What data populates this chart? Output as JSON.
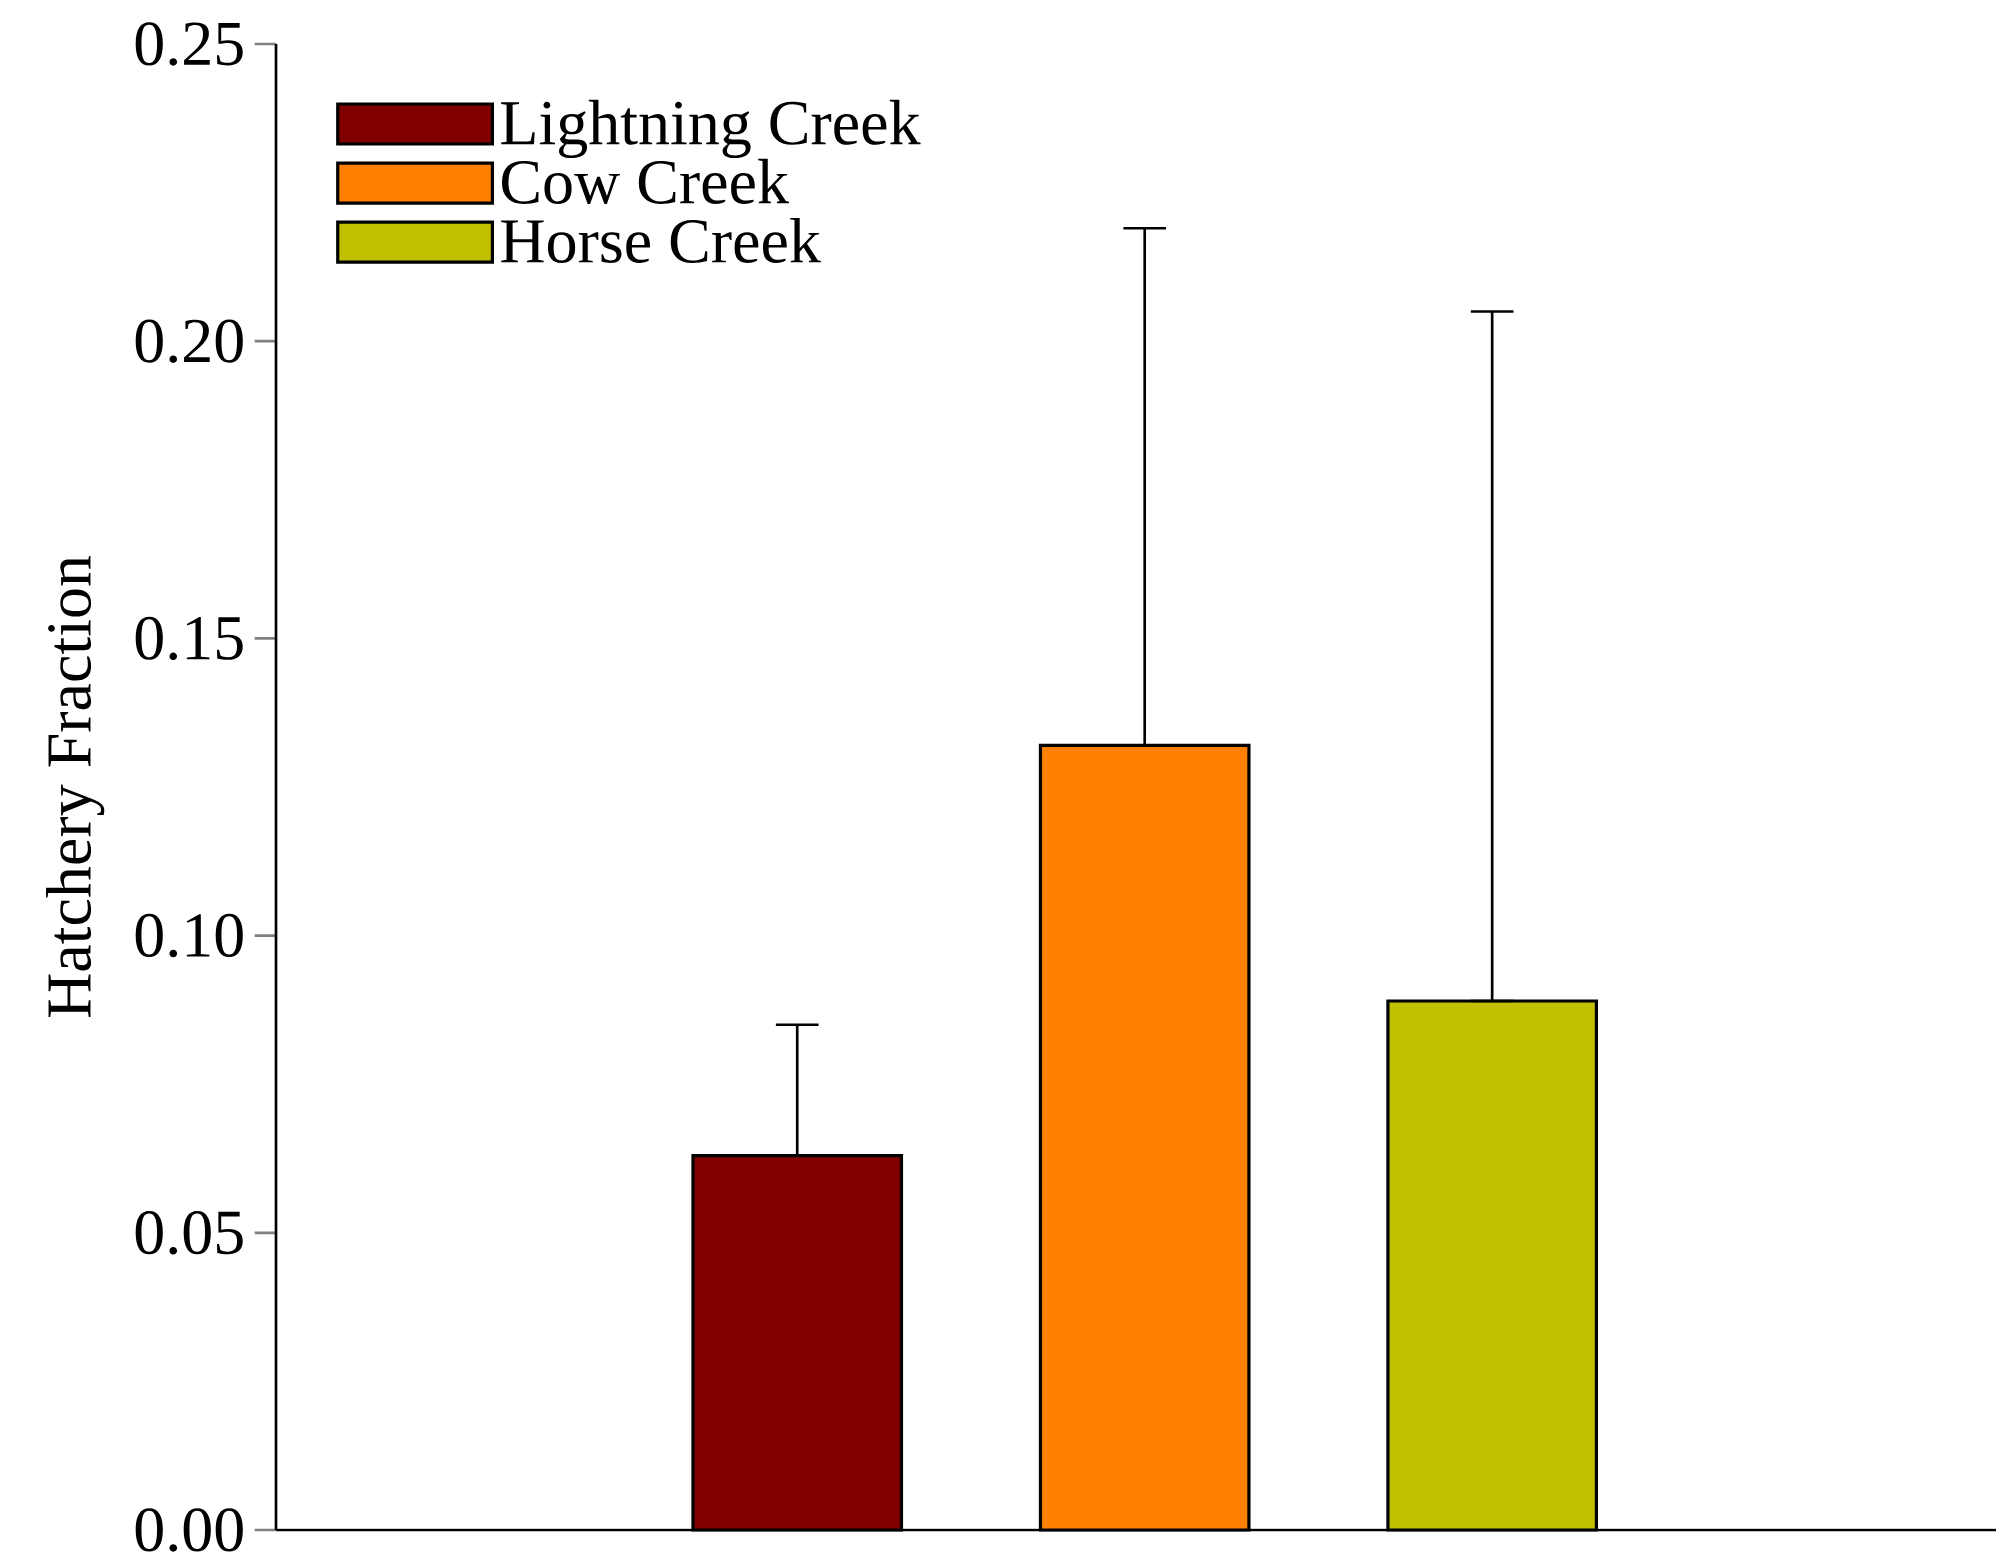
{
  "chart_data": {
    "type": "bar",
    "ylabel": "Hatchery Fraction",
    "categories": [
      null,
      null,
      null
    ],
    "series": [
      {
        "name": "Lightning Creek",
        "color": "#800000",
        "values": [
          0.063,
          null,
          null
        ],
        "errors": [
          [
            0.063,
            0.085
          ],
          null,
          null
        ]
      },
      {
        "name": "Cow Creek",
        "color": "#ff8000",
        "values": [
          null,
          0.132,
          null
        ],
        "errors": [
          null,
          [
            0.132,
            0.219
          ],
          null
        ]
      },
      {
        "name": "Horse Creek",
        "color": "#c0c000",
        "values": [
          null,
          null,
          0.089
        ],
        "errors": [
          null,
          null,
          [
            0.089,
            0.205
          ]
        ]
      }
    ],
    "ylim": [
      0,
      0.25
    ],
    "yticks": [
      {
        "value": 0,
        "label": "0.00"
      },
      {
        "value": 0.05,
        "label": "0.05"
      },
      {
        "value": 0.1,
        "label": "0.10"
      },
      {
        "value": 0.15,
        "label": "0.15"
      },
      {
        "value": 0.2,
        "label": "0.20"
      },
      {
        "value": 0.25,
        "label": "0.25"
      }
    ],
    "legend": "top left",
    "grid": false
  }
}
